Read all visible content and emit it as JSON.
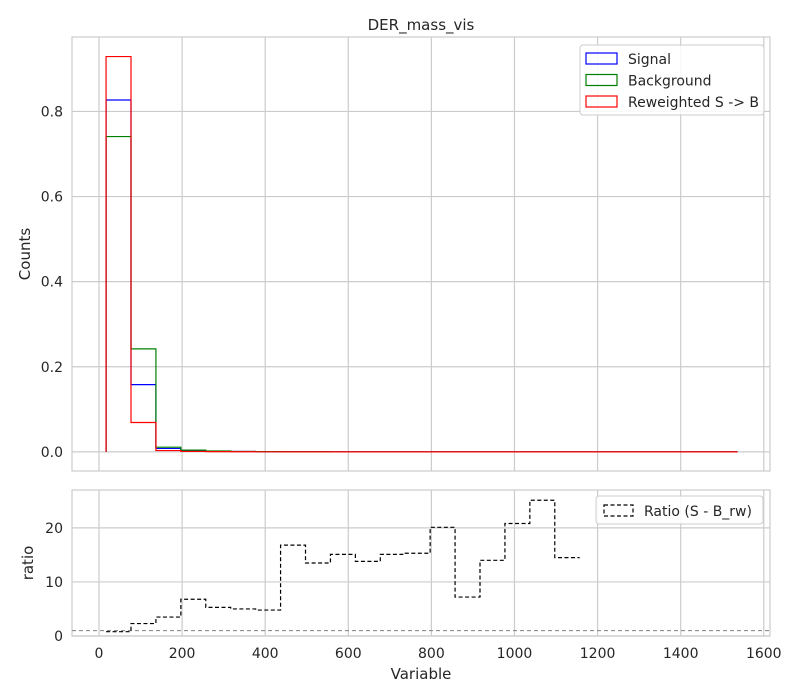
{
  "chart_data": [
    {
      "type": "step",
      "title": "DER_mass_vis",
      "xlabel": "",
      "ylabel": "Counts",
      "xlim": [
        -65,
        1615
      ],
      "ylim": [
        -0.045,
        0.975
      ],
      "xticks": [
        0,
        200,
        400,
        600,
        800,
        1000,
        1200,
        1400,
        1600
      ],
      "yticks": [
        0.0,
        0.2,
        0.4,
        0.6,
        0.8
      ],
      "ytick_labels": [
        "0.0",
        "0.2",
        "0.4",
        "0.6",
        "0.8"
      ],
      "grid": true,
      "legend_position": "top-right",
      "bin_edges": [
        17,
        77,
        137,
        197,
        257,
        317,
        377,
        437,
        497,
        557,
        617,
        677,
        737,
        797,
        857,
        917,
        977,
        1037,
        1097,
        1157,
        1217,
        1277,
        1337,
        1397,
        1457,
        1537
      ],
      "series": [
        {
          "name": "Signal",
          "color": "#0000ff",
          "values": [
            0.827,
            0.158,
            0.008,
            0.003,
            0.0015,
            0.001,
            0.0005,
            0.0003,
            0.0002,
            0.0001,
            0.0001,
            0,
            0,
            0,
            0,
            0,
            0,
            0,
            0,
            0,
            0,
            0,
            0,
            0,
            0
          ]
        },
        {
          "name": "Background",
          "color": "#008000",
          "values": [
            0.741,
            0.242,
            0.011,
            0.004,
            0.002,
            0.001,
            0.0005,
            0.0003,
            0.0002,
            0.0001,
            0.0001,
            0,
            0,
            0,
            0,
            0,
            0,
            0,
            0,
            0,
            0,
            0,
            0,
            0,
            0
          ]
        },
        {
          "name": "Reweighted S -> B",
          "color": "#ff0000",
          "values": [
            0.929,
            0.069,
            0.003,
            0.001,
            0.0005,
            0.0002,
            0.0001,
            0,
            0,
            0,
            0,
            0,
            0,
            0,
            0,
            0,
            0,
            0,
            0,
            0,
            0,
            0,
            0,
            0,
            0
          ]
        }
      ]
    },
    {
      "type": "step",
      "title": "",
      "xlabel": "Variable",
      "ylabel": "ratio",
      "xlim": [
        -65,
        1615
      ],
      "ylim": [
        0,
        27
      ],
      "xticks": [
        0,
        200,
        400,
        600,
        800,
        1000,
        1200,
        1400,
        1600
      ],
      "yticks": [
        0,
        10,
        20
      ],
      "grid": true,
      "legend_position": "top-right",
      "reference_line": 1,
      "bin_edges": [
        17,
        77,
        137,
        197,
        257,
        317,
        377,
        437,
        497,
        557,
        617,
        677,
        737,
        797,
        857,
        917,
        977,
        1037,
        1097,
        1157
      ],
      "series": [
        {
          "name": "Ratio (S - B_rw)",
          "color": "#000000",
          "values": [
            0.8,
            2.3,
            3.5,
            6.8,
            5.3,
            5.0,
            4.8,
            16.8,
            13.5,
            15.1,
            13.8,
            15.1,
            15.3,
            20.1,
            7.2,
            14.0,
            20.8,
            25.1,
            14.5
          ]
        }
      ]
    }
  ]
}
